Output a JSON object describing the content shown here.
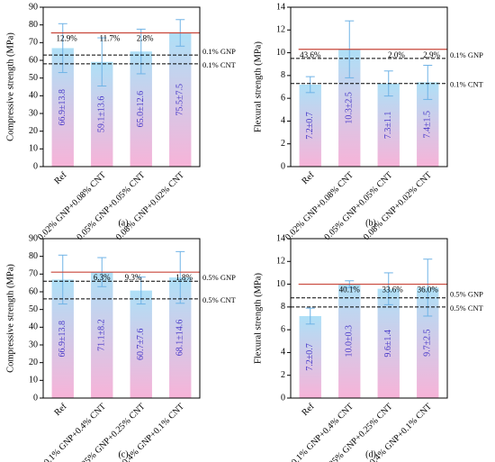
{
  "chart_data": [
    {
      "type": "bar",
      "panel_label": "(a)",
      "y_label": "Compressive strength (MPa)",
      "categories": [
        "Ref",
        "0.02% GNP+0.08% CNT",
        "0.05% GNP+0.05% CNT",
        "0.08% GNP+0.02% CNT"
      ],
      "values": [
        66.9,
        59.1,
        65.0,
        75.5
      ],
      "errors": [
        13.8,
        13.6,
        12.6,
        7.5
      ],
      "value_labels": [
        "66.9±13.8",
        "59.1±13.6",
        "65.0±12.6",
        "75.5±7.5"
      ],
      "ylim": [
        0,
        90
      ],
      "yticks": [
        0,
        10,
        20,
        30,
        40,
        50,
        60,
        70,
        80,
        90
      ],
      "reference_lines": [
        {
          "name": "0.1% GNP",
          "value": 63
        },
        {
          "name": "0.1% CNT",
          "value": 58
        }
      ],
      "annotations": [
        {
          "text": "12.9%",
          "color": "#d9342b"
        },
        {
          "text": "11.7%",
          "color": "#2a5bd7"
        },
        {
          "text": "2.8%",
          "color": "#2a5bd7"
        }
      ]
    },
    {
      "type": "bar",
      "panel_label": "(b)",
      "y_label": "Flexural strength (MPa)",
      "categories": [
        "Ref",
        "0.02% GNP+0.08% CNT",
        "0.05% GNP+0.05% CNT",
        "0.08% GNP+0.02% CNT"
      ],
      "values": [
        7.2,
        10.3,
        7.3,
        7.4
      ],
      "errors": [
        0.7,
        2.5,
        1.1,
        1.5
      ],
      "value_labels": [
        "7.2±0.7",
        "10.3±2.5",
        "7.3±1.1",
        "7.4±1.5"
      ],
      "ylim": [
        0,
        14
      ],
      "yticks": [
        0,
        2,
        4,
        6,
        8,
        10,
        12,
        14
      ],
      "reference_lines": [
        {
          "name": "0.1% GNP",
          "value": 9.5
        },
        {
          "name": "0.1% CNT",
          "value": 7.3
        }
      ],
      "annotations": [
        {
          "text": "43.6%",
          "color": "#d9342b"
        },
        {
          "text": "2.0%",
          "color": "#d9342b"
        },
        {
          "text": "2.9%",
          "color": "#d9342b"
        }
      ]
    },
    {
      "type": "bar",
      "panel_label": "(c)",
      "y_label": "Compressive strength (MPa)",
      "categories": [
        "Ref",
        "0.1% GNP+0.4% CNT",
        "0.25% GNP+0.25% CNT",
        "0.4% GNP+0.1% CNT"
      ],
      "values": [
        66.9,
        71.1,
        60.7,
        68.1
      ],
      "errors": [
        13.8,
        8.2,
        7.6,
        14.6
      ],
      "value_labels": [
        "66.9±13.8",
        "71.1±8.2",
        "60.7±7.6",
        "68.1±14.6"
      ],
      "ylim": [
        0,
        90
      ],
      "yticks": [
        0,
        10,
        20,
        30,
        40,
        50,
        60,
        70,
        80,
        90
      ],
      "reference_lines": [
        {
          "name": "0.5% GNP",
          "value": 66
        },
        {
          "name": "0.5% CNT",
          "value": 56
        }
      ],
      "annotations": [
        {
          "text": "6.3%",
          "color": "#d9342b"
        },
        {
          "text": "9.3%",
          "color": "#2a5bd7"
        },
        {
          "text": "1.8%",
          "color": "#d9342b"
        }
      ]
    },
    {
      "type": "bar",
      "panel_label": "(d)",
      "y_label": "Flexural strength (MPa)",
      "categories": [
        "Ref",
        "0.1% GNP+0.4% CNT",
        "0.25% GNP+0.25% CNT",
        "0.4% GNP+0.1% CNT"
      ],
      "values": [
        7.2,
        10.0,
        9.6,
        9.7
      ],
      "errors": [
        0.7,
        0.3,
        1.4,
        2.5
      ],
      "value_labels": [
        "7.2±0.7",
        "10.0±0.3",
        "9.6±1.4",
        "9.7±2.5"
      ],
      "ylim": [
        0,
        14
      ],
      "yticks": [
        0,
        2,
        4,
        6,
        8,
        10,
        12,
        14
      ],
      "reference_lines": [
        {
          "name": "0.5% GNP",
          "value": 8.8
        },
        {
          "name": "0.5% CNT",
          "value": 8.0
        }
      ],
      "annotations": [
        {
          "text": "40.1%",
          "color": "#d9342b"
        },
        {
          "text": "33.6%",
          "color": "#d9342b"
        },
        {
          "text": "36.0%",
          "color": "#d9342b"
        }
      ]
    }
  ]
}
